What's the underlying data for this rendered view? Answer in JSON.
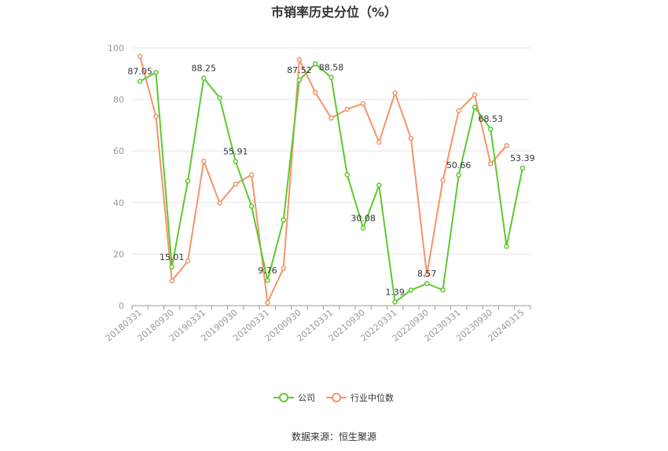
{
  "chart_data": {
    "type": "line",
    "title": "市销率历史分位（%）",
    "source": "数据来源：恒生聚源",
    "ylim": [
      0,
      100
    ],
    "yticks": [
      0,
      20,
      40,
      60,
      80,
      100
    ],
    "grid": true,
    "legend_position": "bottom",
    "x_ticks": [
      "20180331",
      "20180930",
      "20190331",
      "20190930",
      "20200331",
      "20200930",
      "20210331",
      "20210930",
      "20220331",
      "20220930",
      "20230331",
      "20230930",
      "20240315"
    ],
    "series": [
      {
        "name": "公司",
        "color": "#5ec92e",
        "values": [
          87.05,
          90.5,
          15.01,
          48.3,
          88.25,
          80.6,
          55.91,
          38.6,
          9.76,
          33.2,
          87.52,
          93.8,
          88.58,
          50.8,
          30.08,
          46.7,
          1.39,
          6.0,
          8.57,
          6.1,
          50.66,
          77.0,
          68.53,
          23.0,
          53.39
        ],
        "labels": [
          "87.05",
          "",
          "15.01",
          "",
          "88.25",
          "",
          "55.91",
          "",
          "9.76",
          "",
          "87.52",
          "",
          "88.58",
          "",
          "30.08",
          "",
          "1.39",
          "",
          "8.57",
          "",
          "50.66",
          "",
          "68.53",
          "",
          "53.39"
        ]
      },
      {
        "name": "行业中位数",
        "color": "#f5936b",
        "values": [
          96.7,
          73.4,
          9.6,
          17.3,
          56.1,
          39.8,
          47.2,
          50.8,
          1.2,
          14.5,
          95.5,
          82.7,
          72.8,
          76.2,
          78.4,
          63.4,
          82.5,
          64.9,
          12.0,
          48.6,
          75.6,
          81.8,
          55.0,
          62.1,
          null
        ]
      }
    ]
  }
}
